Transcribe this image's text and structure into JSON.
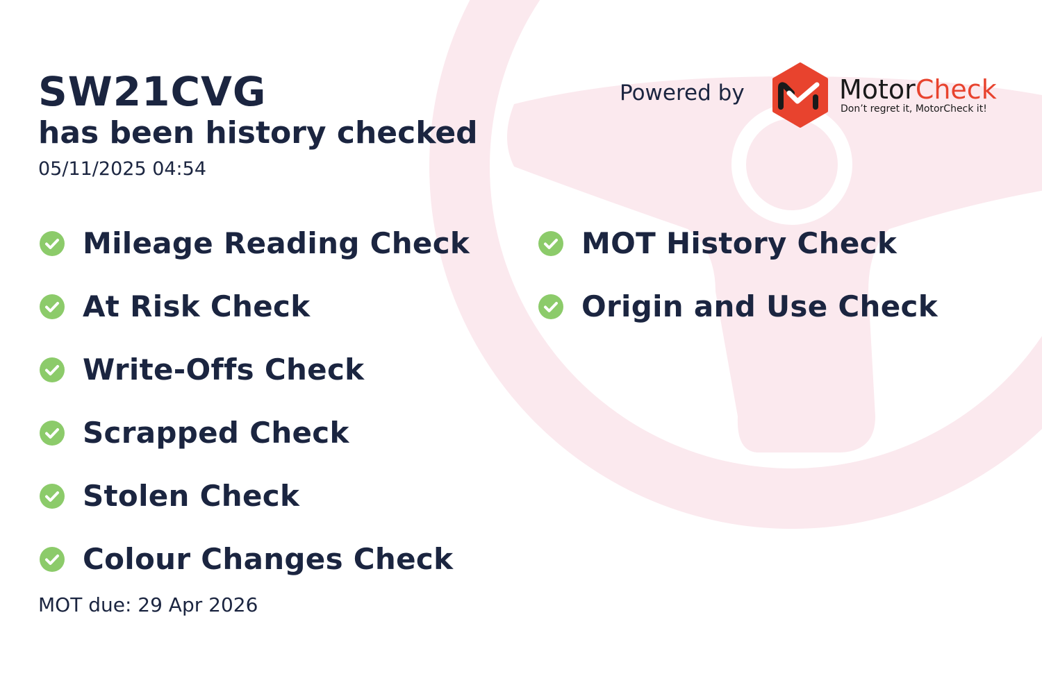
{
  "vehicle": {
    "registration": "SW21CVG",
    "status_text": "has been history checked",
    "checked_at": "05/11/2025 04:54"
  },
  "powered_by": {
    "label": "Powered by",
    "brand_part1": "Motor",
    "brand_part2": "Check",
    "tagline": "Don’t regret it, MotorCheck it!"
  },
  "checks_left": [
    {
      "label": "Mileage Reading Check",
      "icon": "check-circle-icon"
    },
    {
      "label": "At Risk Check",
      "icon": "check-circle-icon"
    },
    {
      "label": "Write-Offs Check",
      "icon": "check-circle-icon"
    },
    {
      "label": "Scrapped Check",
      "icon": "check-circle-icon"
    },
    {
      "label": "Stolen Check",
      "icon": "check-circle-icon"
    },
    {
      "label": "Colour Changes Check",
      "icon": "check-circle-icon"
    }
  ],
  "checks_right": [
    {
      "label": "MOT History Check",
      "icon": "check-circle-icon"
    },
    {
      "label": "Origin and Use Check",
      "icon": "check-circle-icon"
    }
  ],
  "mot_due": "MOT due: 29 Apr 2026",
  "colors": {
    "text": "#1b2540",
    "check": "#8ccb6a",
    "brand_red": "#e8432e",
    "watermark": "#fbe9ee"
  }
}
